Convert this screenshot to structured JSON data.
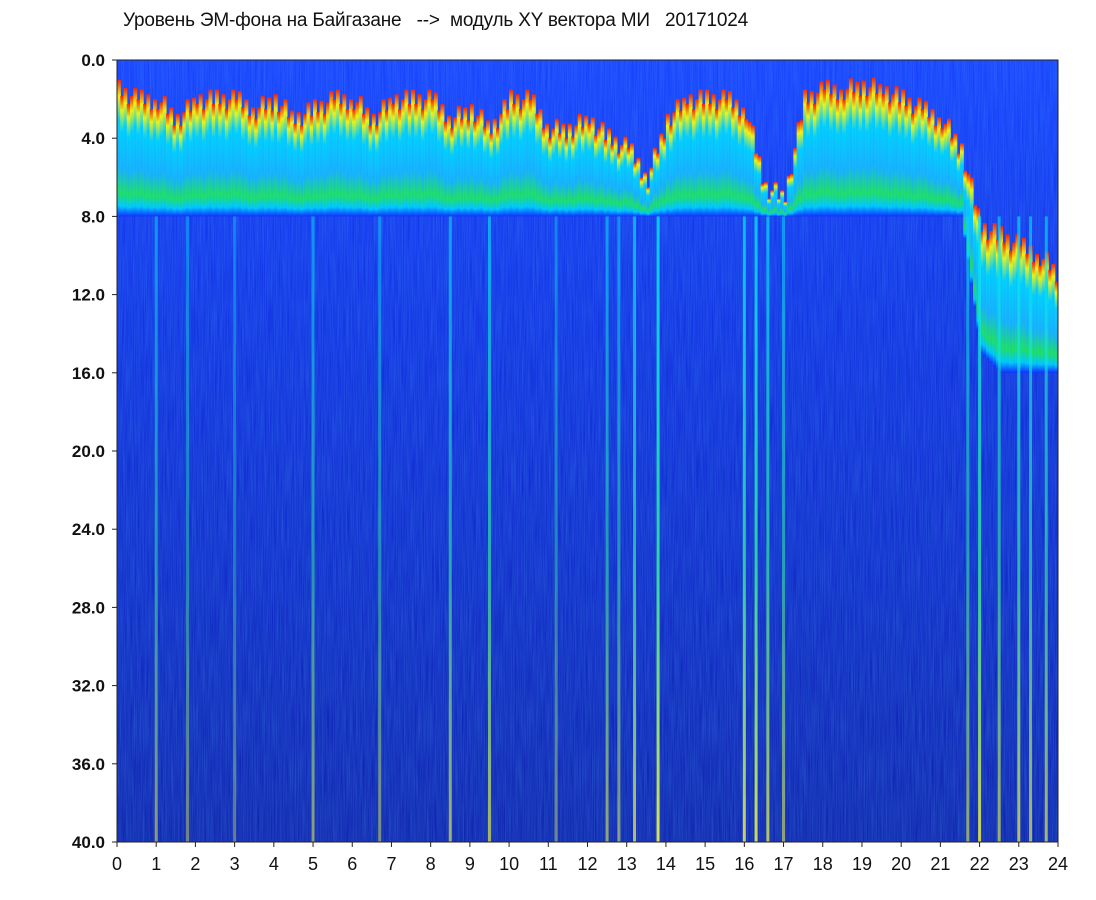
{
  "chart_data": {
    "type": "heatmap",
    "title": "Уровень ЭМ-фона на Байгазане   -->  модуль XY вектора МИ   20171024",
    "xlabel": "",
    "ylabel": "",
    "x_ticks": [
      "0",
      "1",
      "2",
      "3",
      "4",
      "5",
      "6",
      "7",
      "8",
      "9",
      "10",
      "11",
      "12",
      "13",
      "14",
      "15",
      "16",
      "17",
      "18",
      "19",
      "20",
      "21",
      "22",
      "23",
      "24"
    ],
    "y_ticks": [
      "0.0",
      "4.0",
      "8.0",
      "12.0",
      "16.0",
      "20.0",
      "24.0",
      "28.0",
      "32.0",
      "36.0",
      "40.0"
    ],
    "xlim": [
      0,
      24
    ],
    "ylim": [
      0,
      40
    ],
    "y_inverted": true,
    "grid": false,
    "colorscale": [
      "#0a1aa0",
      "#1030ff",
      "#00d8ff",
      "#20e860",
      "#ffff00",
      "#ff2000"
    ],
    "band_levels": {
      "comment": "",
      "x": [
        0,
        0.5,
        1,
        1.5,
        2,
        2.5,
        3,
        3.5,
        4,
        4.5,
        5,
        5.5,
        6,
        6.5,
        7,
        7.5,
        8,
        8.5,
        9,
        9.5,
        10,
        10.5,
        11,
        11.5,
        12,
        12.5,
        13,
        13.5,
        14,
        14.5,
        15,
        15.5,
        16,
        16.5,
        17,
        17.5,
        18,
        18.5,
        19,
        19.5,
        20,
        20.5,
        21,
        21.5,
        22,
        22.5,
        23,
        23.5,
        24
      ],
      "top_y": [
        1.0,
        1.5,
        1.5,
        2.5,
        1.5,
        1.5,
        1.5,
        2.0,
        1.5,
        2.5,
        2.0,
        1.5,
        1.5,
        2.5,
        1.5,
        1.5,
        1.5,
        2.5,
        2.0,
        3.0,
        1.5,
        1.5,
        3.0,
        3.0,
        2.5,
        3.5,
        4.0,
        5.5,
        2.5,
        1.5,
        1.5,
        1.5,
        2.0,
        6.0,
        6.5,
        1.5,
        1.0,
        1.0,
        0.8,
        1.0,
        1.5,
        2.0,
        2.5,
        4.0,
        8.0,
        8.5,
        9.0,
        9.5,
        10.5
      ],
      "band_bottom_y": [
        8.0,
        8.0,
        8.0,
        8.0,
        8.0,
        8.0,
        8.0,
        8.0,
        8.0,
        8.0,
        8.0,
        8.0,
        8.0,
        8.0,
        8.0,
        8.0,
        8.0,
        8.0,
        8.0,
        8.0,
        8.0,
        8.0,
        8.0,
        8.0,
        8.0,
        8.0,
        8.0,
        8.0,
        8.0,
        8.0,
        8.0,
        8.0,
        8.0,
        8.0,
        8.0,
        8.0,
        8.0,
        8.0,
        8.0,
        8.0,
        8.0,
        8.0,
        8.0,
        8.0,
        15.0,
        16.0,
        16.0,
        16.0,
        16.0
      ]
    },
    "vertical_streaks": [
      {
        "x": 1.0,
        "intensity": 0.55
      },
      {
        "x": 1.8,
        "intensity": 0.45
      },
      {
        "x": 3.0,
        "intensity": 0.4
      },
      {
        "x": 5.0,
        "intensity": 0.55
      },
      {
        "x": 6.7,
        "intensity": 0.5
      },
      {
        "x": 8.5,
        "intensity": 0.65
      },
      {
        "x": 9.5,
        "intensity": 0.7
      },
      {
        "x": 11.2,
        "intensity": 0.45
      },
      {
        "x": 12.5,
        "intensity": 0.6
      },
      {
        "x": 12.8,
        "intensity": 0.55
      },
      {
        "x": 13.2,
        "intensity": 0.75
      },
      {
        "x": 13.8,
        "intensity": 0.95
      },
      {
        "x": 16.0,
        "intensity": 0.85
      },
      {
        "x": 16.3,
        "intensity": 0.9
      },
      {
        "x": 16.6,
        "intensity": 0.75
      },
      {
        "x": 17.0,
        "intensity": 0.6
      },
      {
        "x": 21.7,
        "intensity": 0.6
      },
      {
        "x": 22.0,
        "intensity": 0.85
      },
      {
        "x": 22.5,
        "intensity": 0.65
      },
      {
        "x": 23.0,
        "intensity": 0.75
      },
      {
        "x": 23.3,
        "intensity": 0.7
      },
      {
        "x": 23.7,
        "intensity": 0.7
      }
    ]
  }
}
